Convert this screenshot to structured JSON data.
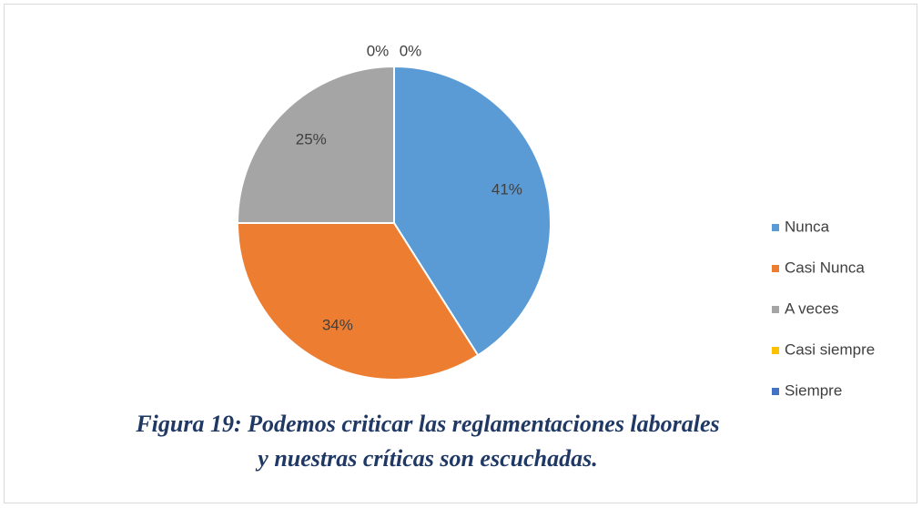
{
  "chart_data": {
    "type": "pie",
    "categories": [
      "Nunca",
      "Casi Nunca",
      "A veces",
      "Casi siempre",
      "Siempre"
    ],
    "values": [
      41,
      34,
      25,
      0,
      0
    ],
    "value_labels": [
      "41%",
      "34%",
      "25%",
      "0%",
      "0%"
    ],
    "colors": [
      "#5b9bd5",
      "#ed7d31",
      "#a5a5a5",
      "#ffc000",
      "#4472c4"
    ],
    "legend": "right",
    "caption": [
      "Figura 19: Podemos criticar las reglamentaciones laborales",
      "y nuestras críticas son escuchadas."
    ]
  }
}
